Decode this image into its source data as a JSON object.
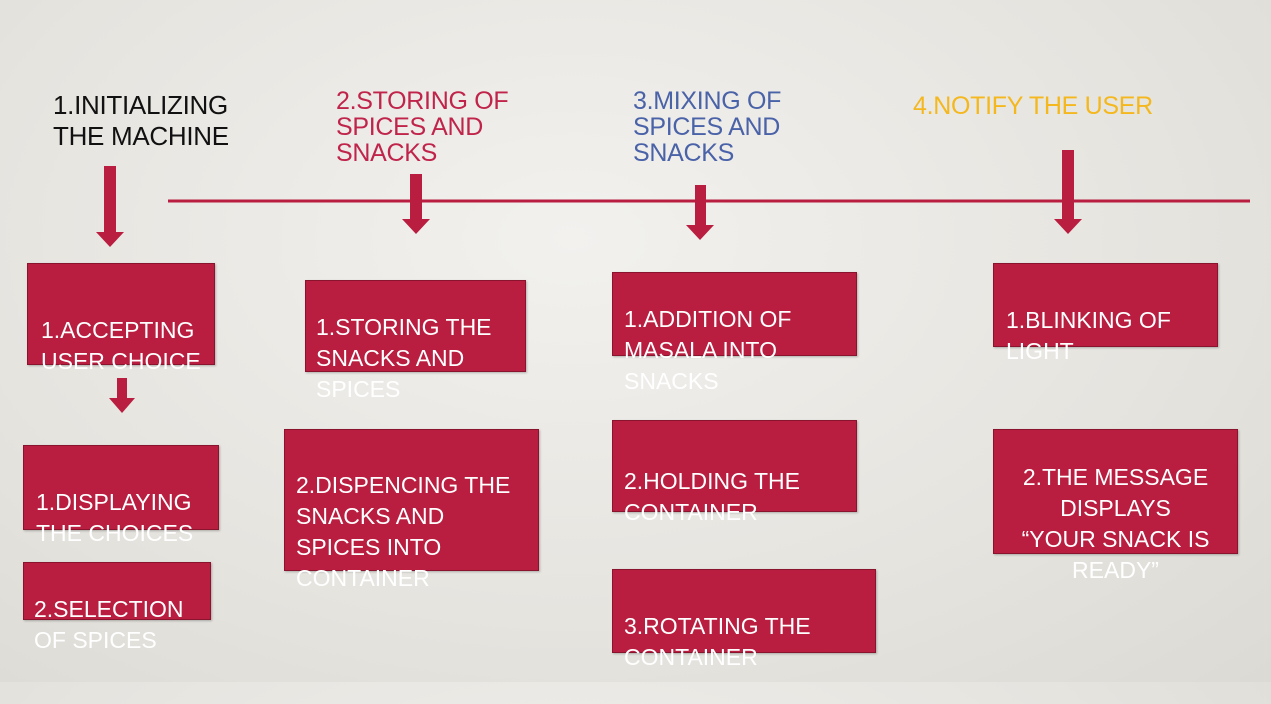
{
  "colors": {
    "box_fill": "#b91d3f",
    "arrow": "#b91d3f",
    "timeline": "#b91d3f",
    "heading_1": "#111111",
    "heading_2": "#c0244a",
    "heading_3": "#4a62a8",
    "heading_4": "#f4b81e"
  },
  "stages": [
    {
      "heading": "1.INITIALIZING\nTHE MACHINE",
      "steps": [
        "1.ACCEPTING\nUSER CHOICE",
        "1.DISPLAYING\nTHE CHOICES",
        "2.SELECTION\nOF SPICES"
      ]
    },
    {
      "heading": "2.STORING OF\nSPICES AND\nSNACKS",
      "steps": [
        "1.STORING THE\nSNACKS AND\nSPICES",
        "2.DISPENCING THE\nSNACKS AND\nSPICES INTO\nCONTAINER"
      ]
    },
    {
      "heading": "3.MIXING OF\nSPICES AND\nSNACKS",
      "steps": [
        "1.ADDITION OF\nMASALA INTO\nSNACKS",
        "2.HOLDING THE\nCONTAINER",
        "3.ROTATING THE\nCONTAINER"
      ]
    },
    {
      "heading": "4.NOTIFY THE USER",
      "steps": [
        "1.BLINKING OF\nLIGHT",
        "2.THE MESSAGE\nDISPLAYS\n“YOUR SNACK IS\nREADY”"
      ]
    }
  ]
}
